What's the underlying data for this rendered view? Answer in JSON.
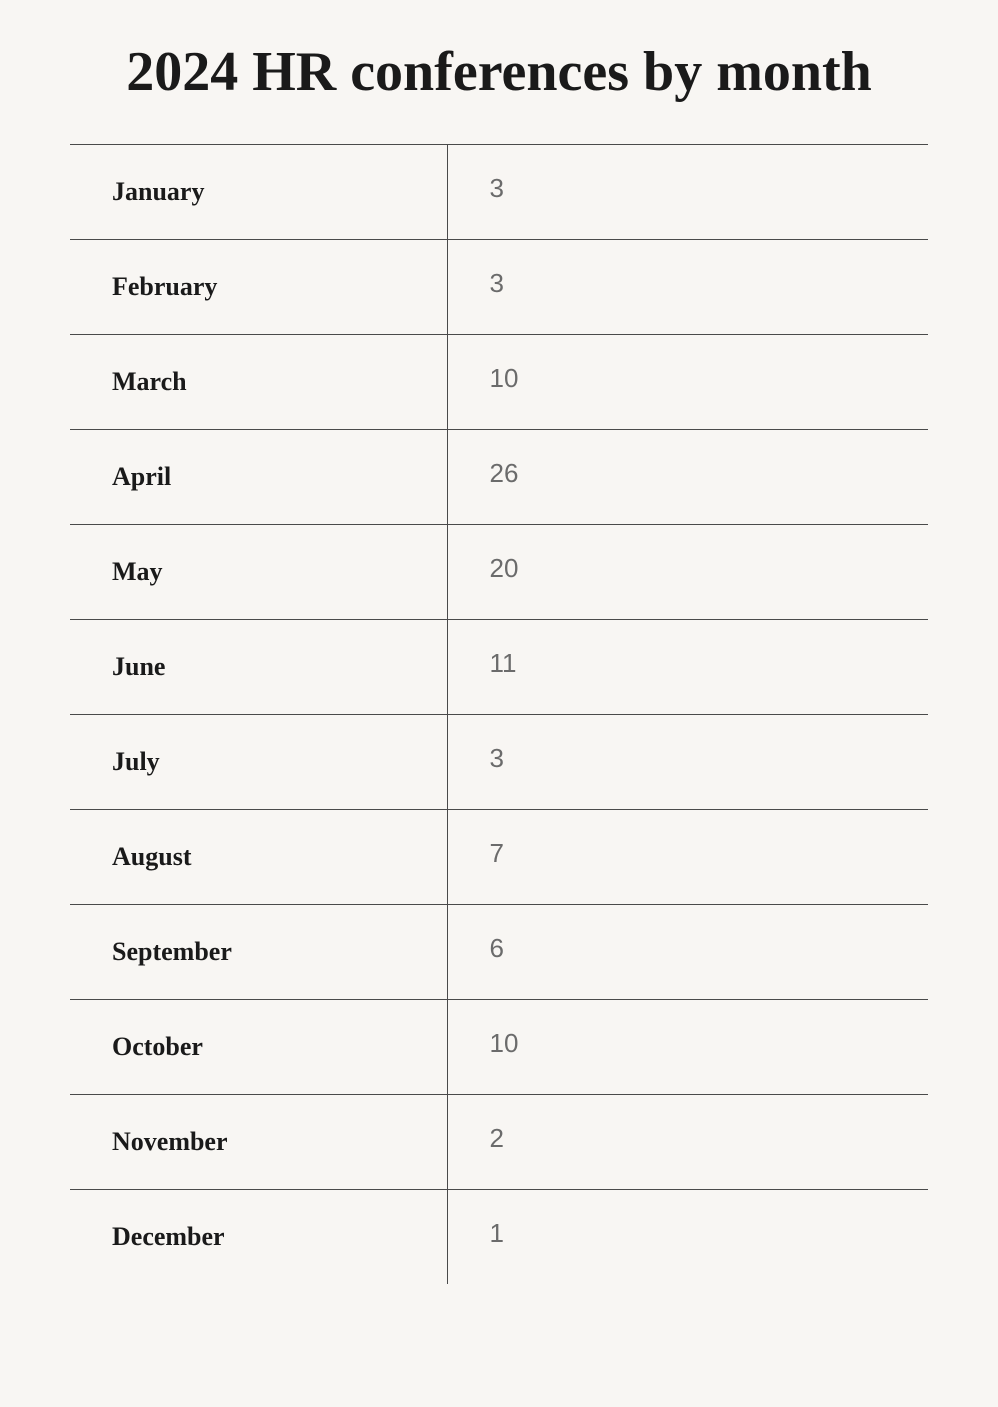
{
  "title": "2024 HR conferences by month",
  "table": {
    "rows": [
      {
        "month": "January",
        "count": "3"
      },
      {
        "month": "February",
        "count": "3"
      },
      {
        "month": "March",
        "count": "10"
      },
      {
        "month": "April",
        "count": "26"
      },
      {
        "month": "May",
        "count": "20"
      },
      {
        "month": "June",
        "count": "11"
      },
      {
        "month": "July",
        "count": "3"
      },
      {
        "month": "August",
        "count": "7"
      },
      {
        "month": "September",
        "count": "6"
      },
      {
        "month": "October",
        "count": "10"
      },
      {
        "month": "November",
        "count": "2"
      },
      {
        "month": "December",
        "count": "1"
      }
    ],
    "styling": {
      "background_color": "#f8f6f3",
      "border_color": "#4a4a4a",
      "title_color": "#1a1a1a",
      "title_fontsize": 56,
      "month_color": "#1a1a1a",
      "month_fontsize": 26,
      "month_fontweight": "bold",
      "value_color": "#6b6b6b",
      "value_fontsize": 26,
      "month_font_family": "serif",
      "value_font_family": "sans-serif",
      "column_split_percent": 44
    }
  }
}
